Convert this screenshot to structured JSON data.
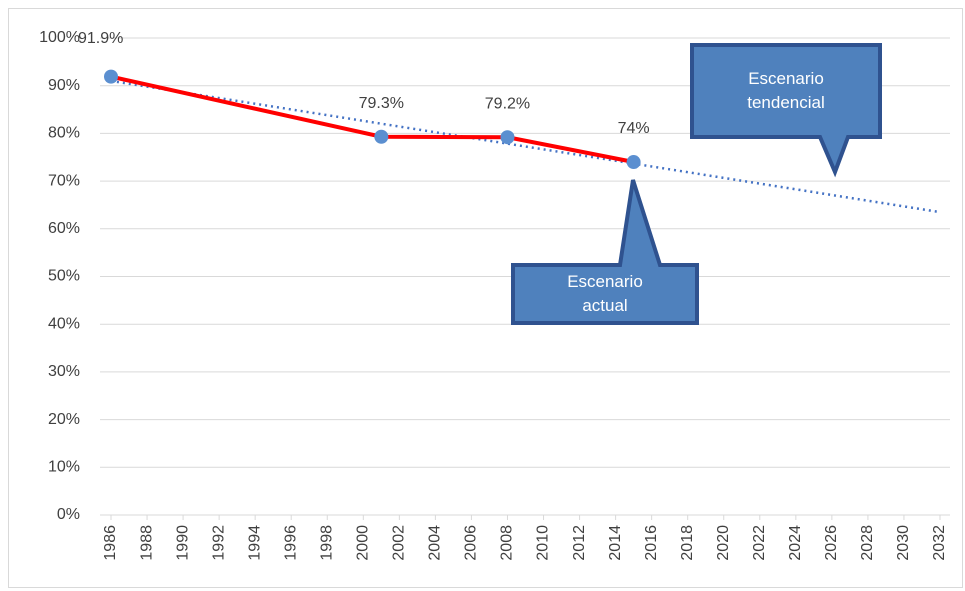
{
  "chart_data": {
    "type": "line",
    "x": [
      1986,
      2001,
      2008,
      2015
    ],
    "series": [
      {
        "color": "#ff0000",
        "marker_color": "#5b8fd0",
        "values": [
          91.9,
          79.3,
          79.2,
          74
        ],
        "value_labels": [
          "91.9%",
          "79.3%",
          "79.2%",
          "74%"
        ]
      }
    ],
    "trendline": {
      "x": [
        1986,
        2032
      ],
      "values": [
        91,
        63.5
      ],
      "color": "#4472c4",
      "style": "dotted"
    },
    "xlim": [
      1986,
      2032
    ],
    "xticks": [
      1986,
      1988,
      1990,
      1992,
      1994,
      1996,
      1998,
      2000,
      2002,
      2004,
      2006,
      2008,
      2010,
      2012,
      2014,
      2016,
      2018,
      2020,
      2022,
      2024,
      2026,
      2028,
      2030,
      2032
    ],
    "ylim": [
      0,
      100
    ],
    "yticks": [
      {
        "value": 0,
        "label": "0%"
      },
      {
        "value": 10,
        "label": "10%"
      },
      {
        "value": 20,
        "label": "20%"
      },
      {
        "value": 30,
        "label": "30%"
      },
      {
        "value": 40,
        "label": "40%"
      },
      {
        "value": 50,
        "label": "50%"
      },
      {
        "value": 60,
        "label": "60%"
      },
      {
        "value": 70,
        "label": "70%"
      },
      {
        "value": 80,
        "label": "80%"
      },
      {
        "value": 90,
        "label": "90%"
      },
      {
        "value": 100,
        "label": "100%"
      }
    ],
    "grid": true,
    "annotations": [
      {
        "text": "Escenario actual"
      },
      {
        "text": "Escenario tendencial"
      }
    ]
  }
}
